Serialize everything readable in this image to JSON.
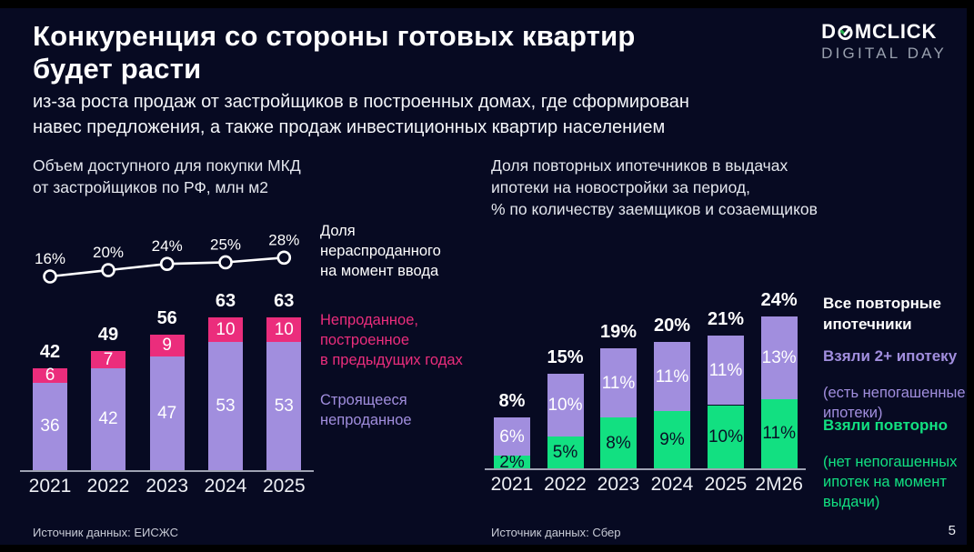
{
  "slide": {
    "title": "Конкуренция со стороны готовых квартир\nбудет расти",
    "subtitle": "из-за роста продаж от застройщиков в построенных домах, где сформирован\nнавес предложения, а также продаж инвестиционных квартир населением",
    "page_number": "5",
    "background": "#070A22"
  },
  "logo": {
    "brand_prefix": "D",
    "brand_suffix": "MCLICK",
    "o_icon": "domclick-check-in-circle",
    "event": "DIGITAL DAY"
  },
  "colors": {
    "background": "#070A22",
    "white": "#FFFFFF",
    "pink": "#EB2D7C",
    "purple": "#A18EDE",
    "green": "#12E081",
    "axis_grey": "#9EA2B2",
    "logo_green": "#21B04B"
  },
  "left_legend": [
    {
      "label": "Доля\nнераспроданного\nна момент ввода",
      "color": "#FFFFFF"
    },
    {
      "label": "Непроданное,\nпостроенное\nв предыдущих годах",
      "color": "#EB2D7C"
    },
    {
      "label": "Строящееся\nнепроданное",
      "color": "#A18EDE"
    }
  ],
  "right_legend": [
    {
      "title": "Все повторные\nипотечники",
      "sub": "",
      "color": "#FFFFFF"
    },
    {
      "title": "Взяли 2+ ипотеку",
      "sub": "(есть непогашенные\nипотеки)",
      "color": "#A18EDE"
    },
    {
      "title": "Взяли повторно",
      "sub": "(нет непогашенных\nипотек на момент\nвыдачи)",
      "color": "#12E081"
    }
  ],
  "footers": {
    "left_source": "Источник данных: ЕИСЖС",
    "right_source": "Источник данных: Сбер"
  },
  "chart_data": [
    {
      "type": "bar",
      "stacked": true,
      "title": "Объем доступного для покупки МКД\nот застройщиков по РФ, млн м2",
      "ylabel": "млн м2",
      "categories": [
        "2021",
        "2022",
        "2023",
        "2024",
        "2025"
      ],
      "series": [
        {
          "name": "Строящееся непроданное",
          "color": "#A18EDE",
          "text_color": "#FFFFFF",
          "values": [
            36,
            42,
            47,
            53,
            53
          ]
        },
        {
          "name": "Непроданное, построенное в предыдущих годах",
          "color": "#EB2D7C",
          "text_color": "#FFFFFF",
          "values": [
            6,
            7,
            9,
            10,
            10
          ]
        }
      ],
      "totals": [
        42,
        49,
        56,
        63,
        63
      ],
      "value_suffix": "",
      "line_series": {
        "name": "Доля нераспроданного на момент ввода",
        "unit": "%",
        "values": [
          16,
          20,
          24,
          25,
          28
        ]
      },
      "legend_position": "right",
      "grid": false,
      "source": "Источник данных: ЕИСЖС"
    },
    {
      "type": "bar",
      "stacked": true,
      "title": "Доля повторных ипотечников в выдачах\nипотеки на новостройки за период,\n% по количеству заемщиков и созаемщиков",
      "ylabel": "%",
      "categories": [
        "2021",
        "2022",
        "2023",
        "2024",
        "2025",
        "2M26"
      ],
      "series": [
        {
          "name": "Взяли повторно (нет непогашенных ипотек на момент выдачи)",
          "color": "#12E081",
          "text_color": "#081026",
          "values": [
            2,
            5,
            8,
            9,
            10,
            11
          ]
        },
        {
          "name": "Взяли 2+ ипотеку (есть непогашенные ипотеки)",
          "color": "#A18EDE",
          "text_color": "#FFFFFF",
          "values": [
            6,
            10,
            11,
            11,
            11,
            13
          ]
        }
      ],
      "totals": [
        8,
        15,
        19,
        20,
        21,
        24
      ],
      "value_suffix": "%",
      "legend_position": "right",
      "grid": false,
      "source": "Источник данных: Сбер"
    }
  ]
}
